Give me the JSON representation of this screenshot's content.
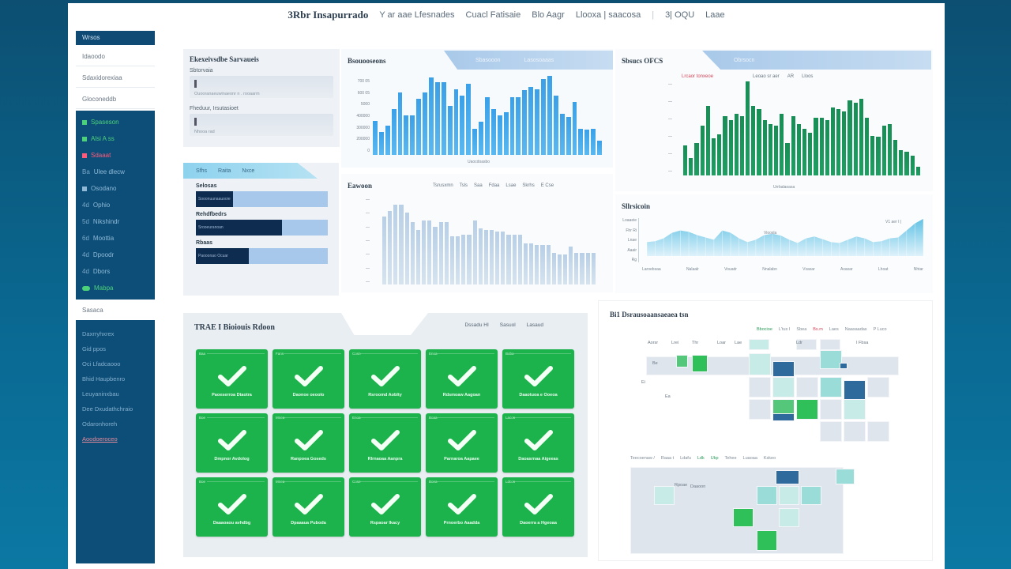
{
  "topbar": {
    "brand": "3Rbr Insapurrado",
    "links": [
      "Y ar aae Lfesnades",
      "Cuacl Fatisaie",
      "Blo Aagr",
      "Llooxa | saacosa",
      "3| OQU",
      "Laae"
    ]
  },
  "sidebar": {
    "header": "Wrsos",
    "items_light": [
      "Idaoodo",
      "Sdaxidorexiaa",
      "Gloconeddb"
    ],
    "items_dark": [
      {
        "label": "Spaseson",
        "num": "",
        "tone": "green",
        "icon": "dashboard-icon"
      },
      {
        "label": "Alsi A ss",
        "num": "",
        "tone": "green",
        "icon": "chart-icon"
      },
      {
        "label": "Sdaaat",
        "num": "",
        "tone": "red",
        "icon": "alert-icon"
      },
      {
        "label": "Ulee dlecw",
        "num": "Ba",
        "tone": "normal",
        "icon": "list-icon"
      },
      {
        "label": "Osodano",
        "num": "",
        "tone": "normal",
        "icon": "file-icon"
      },
      {
        "label": "Ophio",
        "num": "4d",
        "tone": "normal",
        "icon": "folder-icon"
      },
      {
        "label": "Nikshindr",
        "num": "5d",
        "tone": "normal",
        "icon": "folder-icon"
      },
      {
        "label": "Moottia",
        "num": "6d",
        "tone": "normal",
        "icon": "folder-icon"
      },
      {
        "label": "Dpoodr",
        "num": "4d",
        "tone": "normal",
        "icon": "folder-icon"
      },
      {
        "label": "Dbors",
        "num": "4d",
        "tone": "normal",
        "icon": "folder-icon"
      },
      {
        "label": "Mabpa",
        "num": "",
        "tone": "green",
        "icon": "settings-icon"
      }
    ],
    "section_label": "Sasaca",
    "items_lower": [
      "Daxrryhxrex",
      "Gid ppos",
      "Oci Lfadcaooo",
      "Bhid Haupbenro",
      "Leuyaninxbau",
      "Dee Dxudathchraio",
      "Odaronhoreh",
      "Aoodoeroceo"
    ]
  },
  "filters_panel": {
    "title": "Ekexeivsdbe Sarvaueis",
    "fields": [
      {
        "label": "Sbtorvaia",
        "hint": "Ouooranaeuwinaeonr n . rooaarm"
      },
      {
        "label": "Fheduur, Irsutasioet",
        "hint": "Nhooa rad"
      }
    ]
  },
  "progress_panel": {
    "tabs": [
      "Sfhs",
      "Raita",
      "Nxce"
    ],
    "bars": [
      {
        "label": "Selosas",
        "fill_text": "Sooonuunaauooie",
        "pct": 28
      },
      {
        "label": "Rehdfbedrs",
        "fill_text": "Srooeuranoan",
        "pct": 65
      },
      {
        "label": "Rbaas",
        "fill_text": "Paooonao Ocuar",
        "pct": 40
      }
    ],
    "accent_dark": "#0e2c50",
    "accent_light": "#a7c8ea"
  },
  "charts": {
    "chart1": {
      "title": "Bsouooseons",
      "ribbon": [
        "Sbasooon",
        "Lasosoaaas"
      ],
      "xlabel": "Uaocdoasbo",
      "color": "#3aa0e8"
    },
    "chart2": {
      "title": "Sbsucs OFCS",
      "ribbon": [
        "Obrsocn"
      ],
      "legend": [
        "Lrcaor tonxeoe",
        "Leoao sr aer",
        "AR",
        "Lloos"
      ],
      "xlabel": "Urrbalaoasa",
      "color": "#178e55"
    },
    "chart3": {
      "title": "Eawoon",
      "legend": [
        "Tsrusxmn",
        "Tsls",
        "Saa",
        "Fdaa",
        "Lsae",
        "Skrhs",
        "E Cse"
      ],
      "color": "#b8cfe6"
    },
    "chart4": {
      "title": "Sllrsicoin",
      "tag": "Vioosla",
      "corner": "V1 aer I |",
      "yticks": [
        "Loaaeie",
        "Fhr Ri",
        "Lnae",
        "Aaair",
        "Rg"
      ],
      "xticks": [
        "Laroebsaa",
        "Nalaalr",
        "Vouadr",
        "Nnalabn",
        "Vxaxar",
        "Axaxar",
        "Lhoat",
        "Nhtar"
      ],
      "color": "#48b8e0"
    }
  },
  "chart_data": [
    {
      "type": "bar",
      "title": "Bsouooseons",
      "xlabel": "Uaocdoasbo",
      "ylabel": "Hoc",
      "yticks": [
        "0",
        "200000",
        "300000",
        "400000",
        "5000",
        "600 05",
        "700 05"
      ],
      "values": [
        52,
        35,
        45,
        70,
        95,
        60,
        60,
        85,
        95,
        118,
        110,
        110,
        75,
        100,
        90,
        108,
        40,
        50,
        88,
        70,
        60,
        65,
        88,
        88,
        98,
        103,
        100,
        115,
        120,
        90,
        62,
        58,
        80,
        40,
        38,
        40,
        22
      ]
    },
    {
      "type": "bar",
      "title": "Sbsucs OFCS",
      "xlabel": "Urrbalaoasa",
      "values": [
        35,
        20,
        38,
        58,
        82,
        44,
        48,
        70,
        65,
        72,
        70,
        110,
        82,
        78,
        65,
        60,
        58,
        72,
        38,
        70,
        60,
        55,
        50,
        68,
        68,
        65,
        80,
        78,
        75,
        88,
        85,
        90,
        68,
        46,
        45,
        58,
        60,
        42,
        30,
        28,
        23,
        10
      ]
    },
    {
      "type": "bar",
      "title": "Eawoon",
      "values": [
        85,
        92,
        100,
        100,
        90,
        78,
        68,
        80,
        80,
        72,
        78,
        78,
        60,
        60,
        62,
        62,
        80,
        70,
        68,
        68,
        66,
        66,
        62,
        62,
        62,
        52,
        52,
        50,
        50,
        50,
        40,
        38,
        38,
        48,
        40,
        40,
        40,
        40
      ]
    },
    {
      "type": "area",
      "title": "Sllrsicoin",
      "values": [
        30,
        32,
        38,
        50,
        55,
        52,
        45,
        40,
        35,
        55,
        50,
        38,
        30,
        35,
        45,
        48,
        44,
        35,
        28,
        38,
        42,
        36,
        30,
        28,
        35,
        42,
        38,
        30,
        32,
        38,
        40,
        55,
        70,
        80
      ]
    }
  ],
  "status_panel": {
    "title": "TRAE I Bioiouis Rdoon",
    "actions": [
      "Dssadu HI",
      "Sasuol",
      "Lasaud"
    ],
    "tiles": [
      {
        "tag": "Baa",
        "label": "Paoeserroa Dtaotra"
      },
      {
        "tag": "Fans",
        "label": "Daonoe oeoolo"
      },
      {
        "tag": "Cosn",
        "label": "Rsroomd Aoblty"
      },
      {
        "tag": "Enoa",
        "label": "Rdsmoaw Aagoan"
      },
      {
        "tag": "Boba",
        "label": "Daaotuoa e Ooeoa"
      },
      {
        "tag": "Boe",
        "label": "Dmpnor Avdolog"
      },
      {
        "tag": "Mnea",
        "label": "Ranpoea Goseds"
      },
      {
        "tag": "Enoa",
        "label": "Rlrnaoaa Aanpra"
      },
      {
        "tag": "Boaa",
        "label": "Parnaroa Aapaee"
      },
      {
        "tag": "Lacos",
        "label": "Daoasrnaa Aigeeas"
      },
      {
        "tag": "Boe",
        "label": "Daaaoaou avhdbg"
      },
      {
        "tag": "Mnea",
        "label": "Dpaaaua Puboda"
      },
      {
        "tag": "Cose",
        "label": "Rspaoar Ikacy"
      },
      {
        "tag": "Boea",
        "label": "Prnoerbo Aaadda"
      },
      {
        "tag": "Ldcos",
        "label": "Daoerra a Hgeoaa"
      }
    ],
    "tile_color": "#1cb34c"
  },
  "heatmap_panel": {
    "title": "Bi1 Dsrausoaansaeaea tsn",
    "filters_top": [
      "Bbocioe",
      "L'tux I",
      "Sbea",
      "Bs.m",
      "Laes",
      "Naasaadas",
      "P Luco"
    ],
    "col_labels": [
      "Aorsr",
      "Lrei",
      "Thr",
      "Loar",
      "Lae",
      "Ldr",
      "I Fbsa"
    ],
    "row_labels": [
      "Be",
      "Ei",
      "Ea"
    ],
    "filters_bottom": [
      "Teecoenaw /",
      "Raaa t",
      "Ldafu",
      "Ldk",
      "Ukp",
      "Tehee",
      "Luaoaa",
      "Kskeo"
    ],
    "labels_bottom": [
      "Rpoae",
      "Daaoon"
    ]
  }
}
